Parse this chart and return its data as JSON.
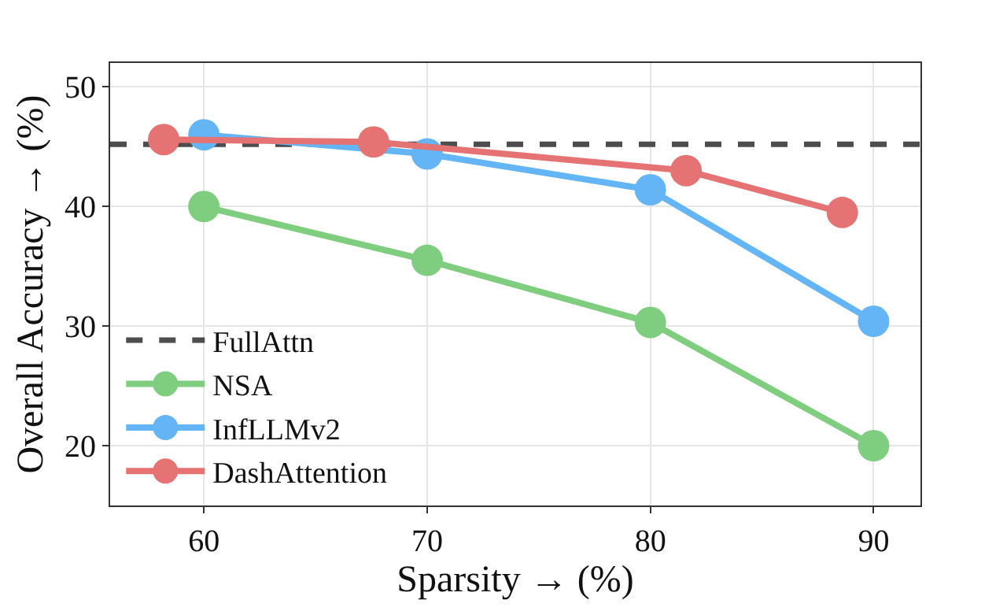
{
  "chart_data": {
    "type": "line",
    "xlabel": "Sparsity → (%)",
    "ylabel": "Overall Accuracy → (%)",
    "xlim": [
      55.8,
      92.1
    ],
    "ylim": [
      15,
      52
    ],
    "xticks": [
      60,
      70,
      80,
      90
    ],
    "yticks": [
      20,
      30,
      40,
      50
    ],
    "grid": true,
    "legend": "bottom left",
    "marker": "circle",
    "line_style": "solid",
    "ref_lines": [
      {
        "axis": "y",
        "value": 45.2,
        "label": "FullAttn",
        "color": "#4d4d4d",
        "line_style": "dashed"
      }
    ],
    "series": [
      {
        "name": "NSA",
        "color": "#7fcd7f",
        "x": [
          60,
          70,
          80,
          90
        ],
        "values": [
          40.0,
          35.5,
          30.3,
          20.0
        ]
      },
      {
        "name": "InfLLMv2",
        "color": "#64b5f6",
        "x": [
          60,
          70,
          80,
          90
        ],
        "values": [
          46.0,
          44.4,
          41.4,
          30.4
        ]
      },
      {
        "name": "DashAttention",
        "color": "#e57373",
        "x": [
          58.2,
          67.6,
          81.6,
          88.6
        ],
        "values": [
          45.6,
          45.4,
          43.0,
          39.5
        ]
      }
    ]
  }
}
